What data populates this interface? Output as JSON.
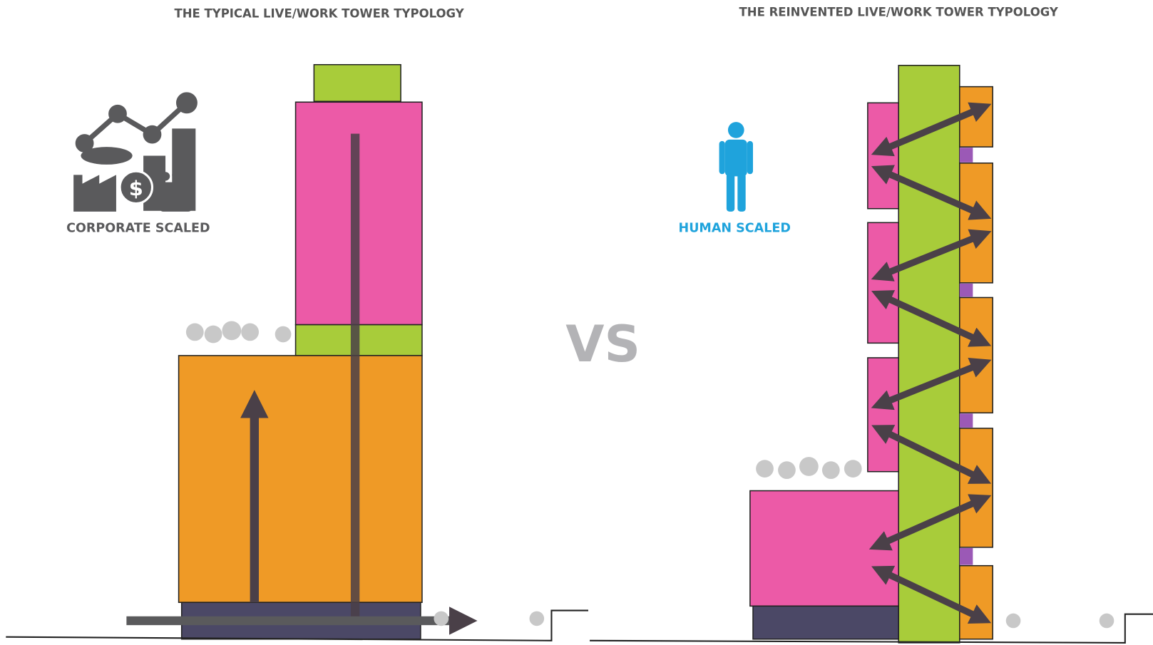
{
  "titles": {
    "left": "THE TYPICAL LIVE/WORK TOWER TYPOLOGY",
    "right": "THE REINVENTED LIVE/WORK TOWER TYPOLOGY"
  },
  "labels": {
    "corporate": "CORPORATE SCALED",
    "human": "HUMAN SCALED"
  },
  "vs": "VS"
}
